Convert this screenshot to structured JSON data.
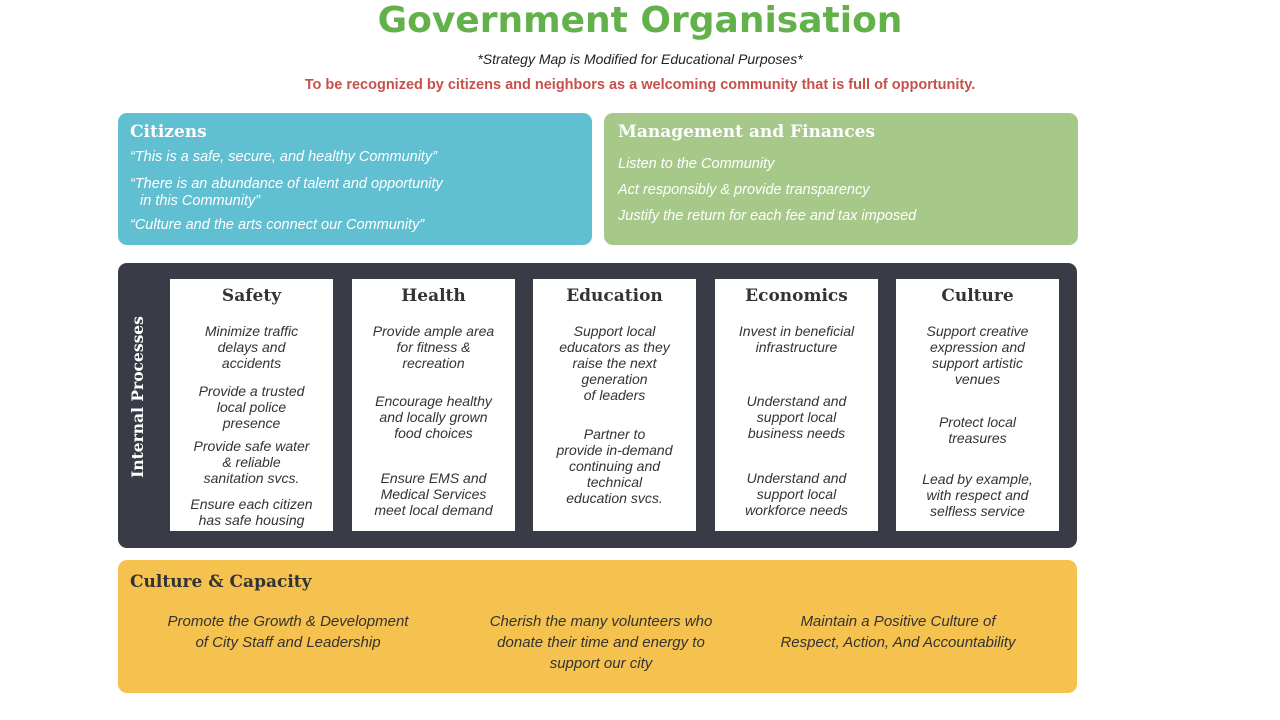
{
  "title": "Government Organisation",
  "subtitle": "*Strategy Map is Modified for Educational Purposes*",
  "vision": "To be recognized by citizens and neighbors as a welcoming community that is full of opportunity.",
  "colors": {
    "title": "#62b14a",
    "vision": "#c8504a",
    "citizens": "#61bfd2",
    "management": "#a6c98a",
    "processes": "#393c47",
    "culture_capacity": "#f5c24f"
  },
  "citizens": {
    "heading": "Citizens",
    "items": [
      "“This is a safe, secure, and healthy Community”",
      "“There is an abundance of talent and opportunity",
      "in this Community”",
      "“Culture and the arts connect our Community”"
    ]
  },
  "management": {
    "heading": "Management and Finances",
    "items": [
      "Listen to the Community",
      "Act responsibly & provide transparency",
      "Justify the return for each fee and tax imposed"
    ]
  },
  "processes": {
    "label": "Internal Processes",
    "columns": [
      {
        "heading": "Safety",
        "items": [
          [
            "Minimize traffic",
            "delays and",
            "accidents"
          ],
          [
            "Provide a trusted",
            "local police",
            "presence"
          ],
          [
            "Provide safe water",
            "& reliable",
            "sanitation svcs."
          ],
          [
            "Ensure each citizen",
            "has safe housing"
          ]
        ]
      },
      {
        "heading": "Health",
        "items": [
          [
            "Provide ample area",
            "for fitness &",
            "recreation"
          ],
          [
            "Encourage healthy",
            "and locally grown",
            "food choices"
          ],
          [
            "Ensure EMS and",
            "Medical Services",
            "meet local demand"
          ]
        ]
      },
      {
        "heading": "Education",
        "items": [
          [
            "Support local",
            "educators as they",
            "raise the next",
            "generation",
            "of leaders"
          ],
          [
            "Partner to",
            "provide in-demand",
            "continuing and",
            "technical",
            "education svcs."
          ]
        ]
      },
      {
        "heading": "Economics",
        "items": [
          [
            "Invest in beneficial",
            "infrastructure"
          ],
          [
            "Understand and",
            "support local",
            "business needs"
          ],
          [
            "Understand and",
            "support local",
            "workforce needs"
          ]
        ]
      },
      {
        "heading": "Culture",
        "items": [
          [
            "Support creative",
            "expression and",
            "support artistic",
            "venues"
          ],
          [
            "Protect local",
            "treasures"
          ],
          [
            "Lead by example,",
            "with respect and",
            "selfless service"
          ]
        ]
      }
    ]
  },
  "culture_capacity": {
    "heading": "Culture & Capacity",
    "items": [
      [
        "Promote the Growth & Development",
        "of City Staff and Leadership"
      ],
      [
        "Cherish the many volunteers who",
        "donate their time and energy to",
        "support our city"
      ],
      [
        "Maintain a Positive Culture of",
        "Respect, Action, And Accountability"
      ]
    ]
  }
}
